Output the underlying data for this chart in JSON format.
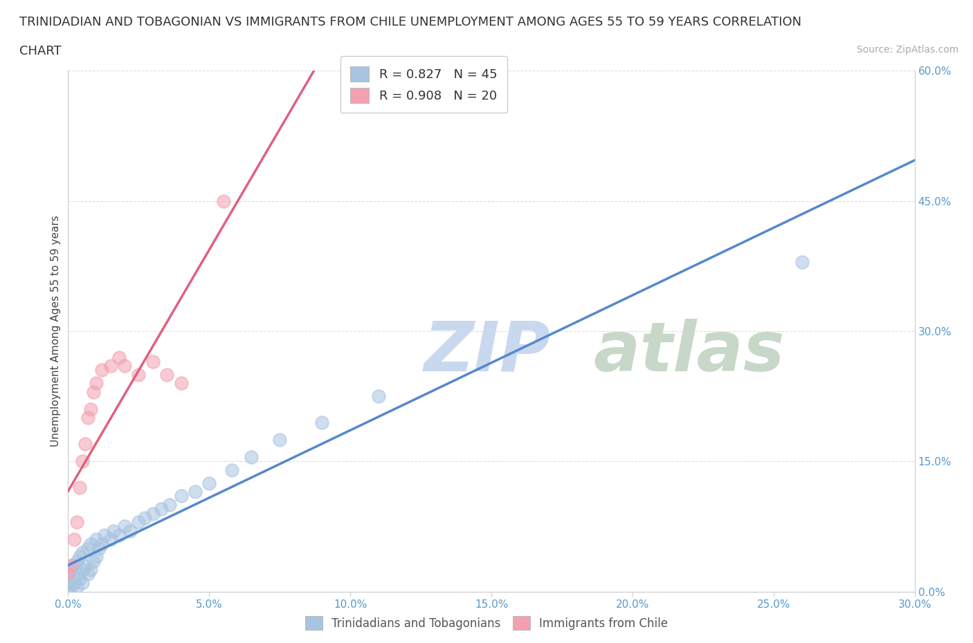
{
  "title_line1": "TRINIDADIAN AND TOBAGONIAN VS IMMIGRANTS FROM CHILE UNEMPLOYMENT AMONG AGES 55 TO 59 YEARS CORRELATION",
  "title_line2": "CHART",
  "source_text": "Source: ZipAtlas.com",
  "ylabel": "Unemployment Among Ages 55 to 59 years",
  "xlim": [
    0.0,
    0.3
  ],
  "ylim": [
    0.0,
    0.6
  ],
  "xticks": [
    0.0,
    0.05,
    0.1,
    0.15,
    0.2,
    0.25,
    0.3
  ],
  "yticks": [
    0.0,
    0.15,
    0.3,
    0.45,
    0.6
  ],
  "blue_R": 0.827,
  "blue_N": 45,
  "pink_R": 0.908,
  "pink_N": 20,
  "blue_color": "#a8c4e0",
  "pink_color": "#f4a0b0",
  "blue_line_color": "#5588cc",
  "pink_line_color": "#e06080",
  "watermark_zip_color": "#c8d8ee",
  "watermark_atlas_color": "#c8d8c8",
  "background_color": "#ffffff",
  "grid_color": "#dddddd",
  "blue_scatter_x": [
    0.0,
    0.0,
    0.0,
    0.001,
    0.001,
    0.002,
    0.002,
    0.003,
    0.003,
    0.003,
    0.004,
    0.004,
    0.005,
    0.005,
    0.005,
    0.006,
    0.007,
    0.007,
    0.008,
    0.008,
    0.009,
    0.01,
    0.01,
    0.011,
    0.012,
    0.013,
    0.015,
    0.016,
    0.018,
    0.02,
    0.022,
    0.025,
    0.027,
    0.03,
    0.033,
    0.036,
    0.04,
    0.045,
    0.05,
    0.058,
    0.065,
    0.075,
    0.09,
    0.11,
    0.26
  ],
  "blue_scatter_y": [
    0.0,
    0.01,
    0.02,
    0.005,
    0.025,
    0.01,
    0.03,
    0.005,
    0.02,
    0.035,
    0.015,
    0.04,
    0.01,
    0.025,
    0.045,
    0.03,
    0.02,
    0.05,
    0.025,
    0.055,
    0.035,
    0.04,
    0.06,
    0.05,
    0.055,
    0.065,
    0.06,
    0.07,
    0.065,
    0.075,
    0.07,
    0.08,
    0.085,
    0.09,
    0.095,
    0.1,
    0.11,
    0.115,
    0.125,
    0.14,
    0.155,
    0.175,
    0.195,
    0.225,
    0.38
  ],
  "pink_scatter_x": [
    0.0,
    0.001,
    0.002,
    0.003,
    0.004,
    0.005,
    0.006,
    0.007,
    0.008,
    0.009,
    0.01,
    0.012,
    0.015,
    0.018,
    0.02,
    0.025,
    0.03,
    0.035,
    0.04,
    0.055
  ],
  "pink_scatter_y": [
    0.02,
    0.03,
    0.06,
    0.08,
    0.12,
    0.15,
    0.17,
    0.2,
    0.21,
    0.23,
    0.24,
    0.255,
    0.26,
    0.27,
    0.26,
    0.25,
    0.265,
    0.25,
    0.24,
    0.45
  ],
  "legend_label_blue": "Trinidadians and Tobagonians",
  "legend_label_pink": "Immigrants from Chile",
  "title_fontsize": 13,
  "axis_label_fontsize": 11,
  "tick_fontsize": 11,
  "legend_fontsize": 13,
  "source_fontsize": 10
}
